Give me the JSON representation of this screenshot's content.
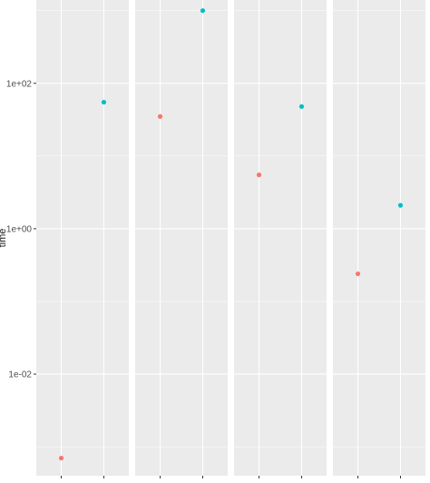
{
  "chart_data": {
    "type": "scatter",
    "log_y": true,
    "ylabel": "time",
    "y_ticks": [
      {
        "value": 0.01,
        "label": "1e-02"
      },
      {
        "value": 1,
        "label": "1e+00"
      },
      {
        "value": 100,
        "label": "1e+02"
      }
    ],
    "ylim": [
      0.0004,
      1400
    ],
    "panels": [
      {
        "points": [
          {
            "x_index": 0,
            "y": 0.0007,
            "color": "#F8766D"
          },
          {
            "x_index": 1,
            "y": 55,
            "color": "#00BFC4"
          }
        ]
      },
      {
        "points": [
          {
            "x_index": 0,
            "y": 35,
            "color": "#F8766D"
          },
          {
            "x_index": 1,
            "y": 1000,
            "color": "#00BFC4"
          }
        ]
      },
      {
        "points": [
          {
            "x_index": 0,
            "y": 5.5,
            "color": "#F8766D"
          },
          {
            "x_index": 1,
            "y": 48,
            "color": "#00BFC4"
          }
        ]
      },
      {
        "points": [
          {
            "x_index": 0,
            "y": 0.24,
            "color": "#F8766D"
          },
          {
            "x_index": 1,
            "y": 2.1,
            "color": "#00BFC4"
          }
        ]
      }
    ],
    "grid": true,
    "panel_background": "#EBEBEB",
    "grid_color": "#FFFFFF"
  }
}
